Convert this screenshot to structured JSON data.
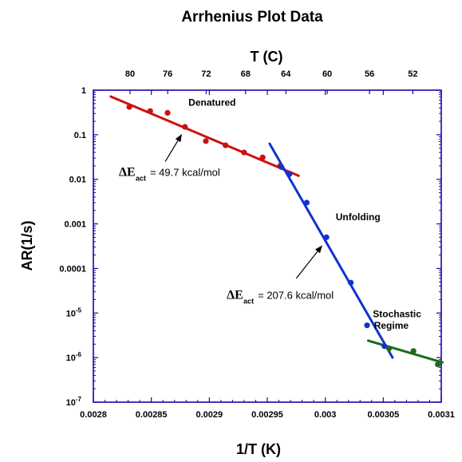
{
  "chart_data": {
    "type": "scatter",
    "title": "Arrhenius Plot Data",
    "xlabel": "1/T (K)",
    "ylabel": "AR(1/s)",
    "top_axis_label": "T (C)",
    "xlim": [
      0.0028,
      0.0031
    ],
    "ylim": [
      1e-07,
      1
    ],
    "y_scale": "log",
    "grid": false,
    "x_ticks": [
      "0.0028",
      "0.00285",
      "0.0029",
      "0.00295",
      "0.003",
      "0.00305",
      "0.0031"
    ],
    "y_ticks": [
      "1",
      "0.1",
      "0.01",
      "0.001",
      "0.0001",
      "10-5",
      "10-6",
      "10-7"
    ],
    "top_ticks": [
      "80",
      "76",
      "72",
      "68",
      "64",
      "60",
      "56",
      "52"
    ],
    "series": [
      {
        "color": "#cc1111",
        "points": [
          [
            0.002831,
            0.42
          ],
          [
            0.002849,
            0.34
          ],
          [
            0.002864,
            0.31
          ],
          [
            0.002879,
            0.15
          ],
          [
            0.002897,
            0.072
          ],
          [
            0.002914,
            0.058
          ],
          [
            0.00293,
            0.04
          ],
          [
            0.002946,
            0.031
          ],
          [
            0.002961,
            0.02
          ]
        ],
        "fit": [
          [
            0.002815,
            0.72
          ],
          [
            0.002977,
            0.012
          ]
        ]
      },
      {
        "color": "#1133cc",
        "points": [
          [
            0.002962,
            0.019
          ],
          [
            0.002969,
            0.013
          ],
          [
            0.002984,
            0.003
          ],
          [
            0.003001,
            0.0005
          ],
          [
            0.003022,
            4.8e-05
          ],
          [
            0.003036,
            5.3e-06
          ],
          [
            0.003051,
            1.8e-06
          ]
        ],
        "fit": [
          [
            0.002952,
            0.063
          ],
          [
            0.003058,
            1e-06
          ]
        ]
      },
      {
        "color": "#1a6b1a",
        "points": [
          [
            0.003055,
            1.6e-06
          ],
          [
            0.003076,
            1.4e-06
          ],
          [
            0.003097,
            7e-07
          ]
        ],
        "fit": [
          [
            0.003037,
            2.4e-06
          ],
          [
            0.003101,
            7.8e-07
          ]
        ]
      }
    ],
    "annotations": [
      {
        "text": "Denatured",
        "x": 0.002882,
        "y": 0.45
      },
      {
        "text": "Unfolding",
        "x": 0.003009,
        "y": 0.0012
      },
      {
        "text": "Stochastic",
        "x": 0.003041,
        "y": 8e-06
      },
      {
        "text": "Regime",
        "x": 0.003042,
        "y": 4.4e-06
      }
    ],
    "activation_labels": [
      {
        "symbol": "ΔE",
        "sub": "act",
        "value": "= 49.7 kcal/mol",
        "x": 0.002822,
        "y": 0.012,
        "arrow_from": [
          0.002862,
          0.025
        ],
        "arrow_to": [
          0.002876,
          0.1
        ]
      },
      {
        "symbol": "ΔE",
        "sub": "act",
        "value": "= 207.6 kcal/mol",
        "x": 0.002915,
        "y": 2.1e-05,
        "arrow_from": [
          0.002975,
          6e-05
        ],
        "arrow_to": [
          0.002997,
          0.00032
        ]
      }
    ]
  }
}
